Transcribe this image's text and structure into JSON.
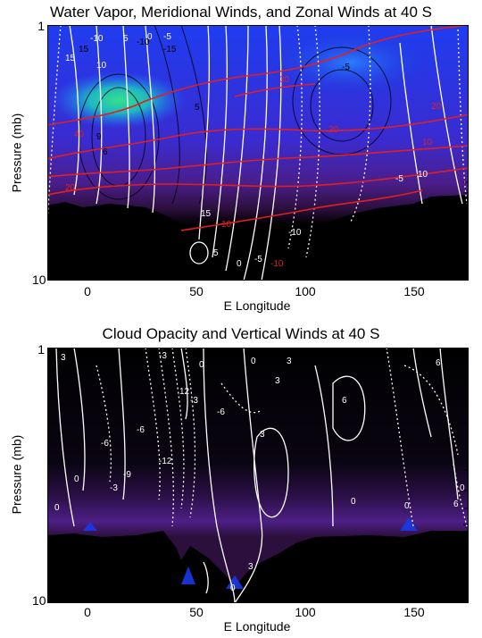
{
  "chart_data": [
    {
      "type": "heatmap",
      "title": "Water Vapor, Meridional Winds, and Zonal Winds at 40 S",
      "xlabel": "E Longitude",
      "ylabel": "Pressure (mb)",
      "x_ticks": [
        "0",
        "50",
        "100",
        "150"
      ],
      "y_ticks": [
        "1",
        "10"
      ],
      "xlim": [
        -20,
        175
      ],
      "ylim": [
        1,
        10
      ],
      "y_scale": "log",
      "contour_labels_white": [
        "15",
        "10",
        "5",
        "0",
        "-5",
        "-10",
        "15",
        "5",
        "0",
        "-5",
        "-10",
        "10",
        "-5"
      ],
      "contour_labels_red": [
        "40",
        "20",
        "10",
        "30",
        "20",
        "30",
        "10",
        "-10"
      ],
      "contour_labels_black": [
        "15",
        "-10",
        "-15",
        "-5",
        "5",
        "9",
        "6"
      ]
    },
    {
      "type": "heatmap",
      "title": "Cloud Opacity and Vertical Winds at 40 S",
      "xlabel": "E Longitude",
      "ylabel": "Pressure (mb)",
      "x_ticks": [
        "0",
        "50",
        "100",
        "150"
      ],
      "y_ticks": [
        "1",
        "10"
      ],
      "xlim": [
        -20,
        175
      ],
      "ylim": [
        1,
        10
      ],
      "y_scale": "log",
      "contour_labels_white": [
        "3",
        "-3",
        "-6",
        "12",
        "0",
        "-3",
        "-6",
        "-9",
        "-12",
        "3",
        "0",
        "3",
        "6",
        "3",
        "0",
        "-3",
        "-6",
        "0",
        "6",
        "0",
        "0",
        "6",
        "0",
        "3",
        "0"
      ]
    }
  ]
}
